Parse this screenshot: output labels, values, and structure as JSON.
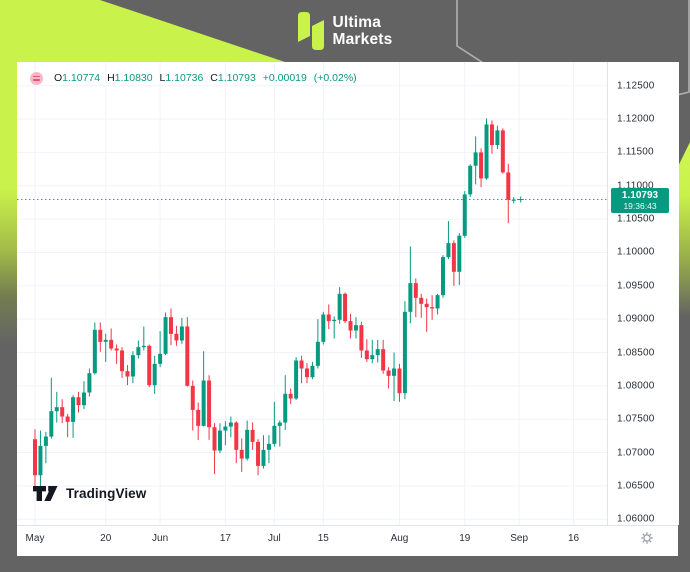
{
  "brand": {
    "line1": "Ultima",
    "line2": "Markets",
    "accent_color": "#c9f24b"
  },
  "legend": {
    "o_label": "O",
    "o": "1.10774",
    "h_label": "H",
    "h": "1.10830",
    "l_label": "L",
    "l": "1.10736",
    "c_label": "C",
    "c": "1.10793",
    "change": "+0.00019",
    "change_pct": "(+0.02%)"
  },
  "price_label": {
    "price": "1.10793",
    "countdown": "19:36:43"
  },
  "tradingview": {
    "wordmark": "TradingView"
  },
  "chart_data": {
    "type": "candlestick",
    "title": "",
    "up_color": "#089981",
    "down_color": "#f23645",
    "grid_color": "#f0f3fa",
    "y_min": 1.06,
    "y_max": 1.125,
    "y_ticks": [
      "1.12500",
      "1.12000",
      "1.11500",
      "1.11000",
      "1.10500",
      "1.10000",
      "1.09500",
      "1.09000",
      "1.08500",
      "1.08000",
      "1.07500",
      "1.07000",
      "1.06500",
      "1.06000"
    ],
    "x_labels": [
      {
        "text": "May",
        "i": 0
      },
      {
        "text": "20",
        "i": 13
      },
      {
        "text": "Jun",
        "i": 23
      },
      {
        "text": "17",
        "i": 35
      },
      {
        "text": "Jul",
        "i": 44
      },
      {
        "text": "15",
        "i": 53
      },
      {
        "text": "Aug",
        "i": 67
      },
      {
        "text": "19",
        "i": 79
      },
      {
        "text": "Sep",
        "i": 89
      },
      {
        "text": "16",
        "i": 99
      }
    ],
    "current_price": 1.10793,
    "candles_ohlc": [
      [
        1.072,
        1.0735,
        1.065,
        1.0666
      ],
      [
        1.0666,
        1.0733,
        1.0649,
        1.071
      ],
      [
        1.071,
        1.0731,
        1.0684,
        1.0724
      ],
      [
        1.0724,
        1.0812,
        1.0721,
        1.0762
      ],
      [
        1.0762,
        1.0791,
        1.0745,
        1.0768
      ],
      [
        1.0768,
        1.078,
        1.0744,
        1.0754
      ],
      [
        1.0754,
        1.0758,
        1.0723,
        1.0746
      ],
      [
        1.0746,
        1.0786,
        1.0722,
        1.0783
      ],
      [
        1.0783,
        1.0791,
        1.076,
        1.0771
      ],
      [
        1.0771,
        1.0807,
        1.0765,
        1.079
      ],
      [
        1.079,
        1.0826,
        1.0784,
        1.0819
      ],
      [
        1.0819,
        1.0895,
        1.0817,
        1.0884
      ],
      [
        1.0884,
        1.0895,
        1.0851,
        1.0866
      ],
      [
        1.0866,
        1.0878,
        1.0836,
        1.0869
      ],
      [
        1.0869,
        1.0886,
        1.0853,
        1.0856
      ],
      [
        1.0856,
        1.0862,
        1.0833,
        1.0853
      ],
      [
        1.0853,
        1.0858,
        1.0812,
        1.0822
      ],
      [
        1.0822,
        1.0831,
        1.0801,
        1.0814
      ],
      [
        1.0814,
        1.0852,
        1.0804,
        1.0846
      ],
      [
        1.0846,
        1.0868,
        1.0841,
        1.0858
      ],
      [
        1.0858,
        1.0889,
        1.0853,
        1.086
      ],
      [
        1.086,
        1.0862,
        1.0798,
        1.0801
      ],
      [
        1.0801,
        1.0845,
        1.0788,
        1.0833
      ],
      [
        1.0833,
        1.0882,
        1.0828,
        1.0848
      ],
      [
        1.0848,
        1.091,
        1.0846,
        1.0903
      ],
      [
        1.0903,
        1.0916,
        1.0861,
        1.0878
      ],
      [
        1.0878,
        1.089,
        1.086,
        1.0868
      ],
      [
        1.0868,
        1.0902,
        1.0863,
        1.0889
      ],
      [
        1.0889,
        1.0903,
        1.0799,
        1.08
      ],
      [
        1.08,
        1.0808,
        1.0733,
        1.0764
      ],
      [
        1.0764,
        1.0775,
        1.0719,
        1.074
      ],
      [
        1.074,
        1.0852,
        1.0739,
        1.0808
      ],
      [
        1.0808,
        1.0816,
        1.0719,
        1.0738
      ],
      [
        1.0738,
        1.0744,
        1.0668,
        1.0703
      ],
      [
        1.0703,
        1.0744,
        1.0699,
        1.0733
      ],
      [
        1.0733,
        1.0747,
        1.0711,
        1.0739
      ],
      [
        1.0739,
        1.0754,
        1.0723,
        1.0745
      ],
      [
        1.0745,
        1.0747,
        1.0684,
        1.0704
      ],
      [
        1.0704,
        1.0721,
        1.0671,
        1.0691
      ],
      [
        1.0691,
        1.0748,
        1.0688,
        1.0734
      ],
      [
        1.0734,
        1.0745,
        1.0704,
        1.0716
      ],
      [
        1.0716,
        1.072,
        1.0666,
        1.068
      ],
      [
        1.068,
        1.0726,
        1.0676,
        1.0704
      ],
      [
        1.0704,
        1.0726,
        1.0684,
        1.0713
      ],
      [
        1.0713,
        1.0776,
        1.0709,
        1.074
      ],
      [
        1.074,
        1.0748,
        1.0709,
        1.0745
      ],
      [
        1.0745,
        1.0816,
        1.0734,
        1.0788
      ],
      [
        1.0788,
        1.0796,
        1.0773,
        1.0781
      ],
      [
        1.0781,
        1.0843,
        1.0779,
        1.0838
      ],
      [
        1.0838,
        1.0845,
        1.0804,
        1.0826
      ],
      [
        1.0826,
        1.0834,
        1.0804,
        1.0813
      ],
      [
        1.0813,
        1.0836,
        1.081,
        1.083
      ],
      [
        1.083,
        1.09,
        1.0826,
        1.0866
      ],
      [
        1.0866,
        1.0911,
        1.0862,
        1.0907
      ],
      [
        1.0907,
        1.0922,
        1.0885,
        1.0897
      ],
      [
        1.0897,
        1.0904,
        1.0871,
        1.0899
      ],
      [
        1.0899,
        1.0948,
        1.0893,
        1.0938
      ],
      [
        1.0938,
        1.094,
        1.0894,
        1.0897
      ],
      [
        1.0897,
        1.0908,
        1.0871,
        1.0883
      ],
      [
        1.0883,
        1.0903,
        1.0871,
        1.0891
      ],
      [
        1.0891,
        1.0896,
        1.0842,
        1.0853
      ],
      [
        1.0853,
        1.087,
        1.0836,
        1.084
      ],
      [
        1.084,
        1.0869,
        1.0834,
        1.0846
      ],
      [
        1.0846,
        1.0869,
        1.0835,
        1.0855
      ],
      [
        1.0855,
        1.0869,
        1.0818,
        1.0823
      ],
      [
        1.0823,
        1.0828,
        1.0796,
        1.0815
      ],
      [
        1.0815,
        1.085,
        1.0777,
        1.0826
      ],
      [
        1.0826,
        1.0833,
        1.0776,
        1.0789
      ],
      [
        1.0789,
        1.0927,
        1.078,
        1.0911
      ],
      [
        1.0911,
        1.1009,
        1.0894,
        1.0954
      ],
      [
        1.0954,
        1.0961,
        1.0903,
        1.0932
      ],
      [
        1.0932,
        1.0938,
        1.0902,
        1.0923
      ],
      [
        1.0923,
        1.0931,
        1.0881,
        1.0918
      ],
      [
        1.0918,
        1.0936,
        1.0899,
        1.0916
      ],
      [
        1.0916,
        1.0938,
        1.0907,
        1.0936
      ],
      [
        1.0936,
        1.0996,
        1.0932,
        1.0993
      ],
      [
        1.0993,
        1.1047,
        1.099,
        1.1014
      ],
      [
        1.1014,
        1.1018,
        1.095,
        1.0971
      ],
      [
        1.0971,
        1.1029,
        1.0951,
        1.1025
      ],
      [
        1.1025,
        1.1092,
        1.1022,
        1.1087
      ],
      [
        1.1087,
        1.1132,
        1.1083,
        1.113
      ],
      [
        1.113,
        1.1174,
        1.1102,
        1.115
      ],
      [
        1.115,
        1.1156,
        1.1098,
        1.1111
      ],
      [
        1.1111,
        1.1201,
        1.1109,
        1.1192
      ],
      [
        1.1192,
        1.1198,
        1.1148,
        1.1161
      ],
      [
        1.1161,
        1.119,
        1.1155,
        1.1183
      ],
      [
        1.1183,
        1.1186,
        1.1118,
        1.112
      ],
      [
        1.112,
        1.1133,
        1.1044,
        1.1079
      ],
      [
        1.10774,
        1.1083,
        1.10736,
        1.10793
      ]
    ]
  }
}
